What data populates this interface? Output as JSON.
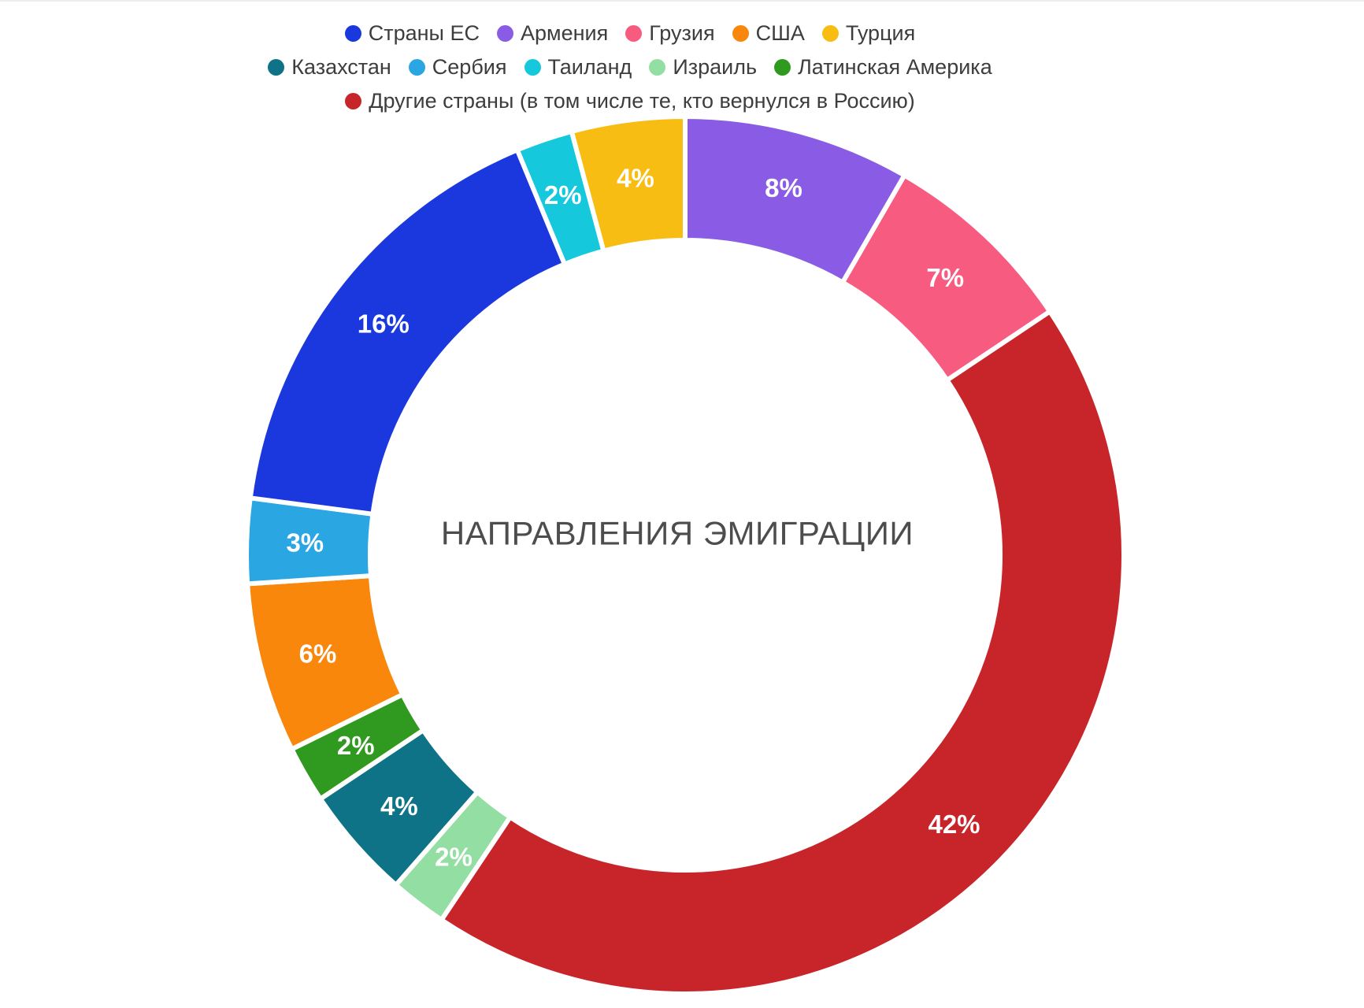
{
  "center_title": "НАПРАВЛЕНИЯ ЭМИГРАЦИИ",
  "chart_data": {
    "type": "pie",
    "subtype": "donut",
    "title": "НАПРАВЛЕНИЯ ЭМИГРАЦИИ",
    "units": "%",
    "legend_position": "top",
    "start_angle_deg": 0,
    "direction": "clockwise",
    "displayed_total": 96,
    "series": [
      {
        "key": "armenia",
        "name": "Армения",
        "value": 8,
        "label": "8%",
        "color": "#8a5ce5"
      },
      {
        "key": "georgia",
        "name": "Грузия",
        "value": 7,
        "label": "7%",
        "color": "#f75c80"
      },
      {
        "key": "other-countries",
        "name": "Другие страны (в том числе те, кто вернулся в Россию)",
        "value": 42,
        "label": "42%",
        "color": "#c8252a"
      },
      {
        "key": "israel",
        "name": "Израиль",
        "value": 2,
        "label": "2%",
        "color": "#93dfa3"
      },
      {
        "key": "kazakhstan",
        "name": "Казахстан",
        "value": 4,
        "label": "4%",
        "color": "#0e7387"
      },
      {
        "key": "latin-america",
        "name": "Латинская Америка",
        "value": 2,
        "label": "2%",
        "color": "#2f9a1f"
      },
      {
        "key": "usa",
        "name": "США",
        "value": 6,
        "label": "6%",
        "color": "#f8870c"
      },
      {
        "key": "serbia",
        "name": "Сербия",
        "value": 3,
        "label": "3%",
        "color": "#2aa6e2"
      },
      {
        "key": "eu",
        "name": "Страны ЕС",
        "value": 16,
        "label": "16%",
        "color": "#1b38df"
      },
      {
        "key": "thailand",
        "name": "Таиланд",
        "value": 2,
        "label": "2%",
        "color": "#15c8dc"
      },
      {
        "key": "turkey",
        "name": "Турция",
        "value": 4,
        "label": "4%",
        "color": "#f8bd13"
      }
    ]
  },
  "legend": {
    "rows": [
      [
        "Страны ЕС",
        "Армения",
        "Грузия",
        "США",
        "Турция"
      ],
      [
        "Казахстан",
        "Сербия",
        "Таиланд",
        "Израиль",
        "Латинская Америка"
      ],
      [
        "Другие страны (в том числе те, кто вернулся в Россию)"
      ]
    ]
  }
}
